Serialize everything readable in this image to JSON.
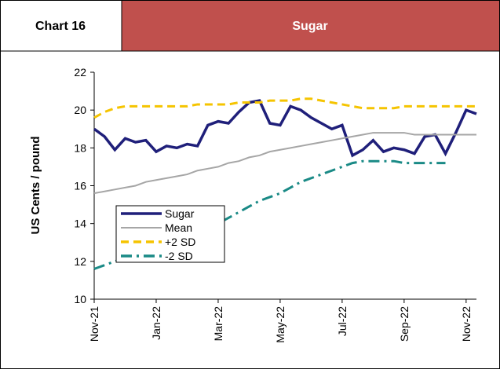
{
  "header": {
    "label": "Chart 16",
    "title": "Sugar"
  },
  "chart_data": {
    "type": "line",
    "y_axis_label": "US Cents / pound",
    "x": [
      "Nov-21",
      null,
      null,
      null,
      null,
      null,
      "Jan-22",
      null,
      null,
      null,
      null,
      null,
      "Mar-22",
      null,
      null,
      null,
      null,
      null,
      "May-22",
      null,
      null,
      null,
      null,
      null,
      "Jul-22",
      null,
      null,
      null,
      null,
      null,
      "Sep-22",
      null,
      null,
      null,
      null,
      null,
      "Nov-22",
      null
    ],
    "ylim": [
      10,
      22
    ],
    "yticks": [
      10,
      12,
      14,
      16,
      18,
      20,
      22
    ],
    "series": [
      {
        "name": "Sugar",
        "color": "#1f1f7a",
        "style": "solid",
        "values": [
          19.0,
          18.6,
          17.9,
          18.5,
          18.3,
          18.4,
          17.8,
          18.1,
          18.0,
          18.2,
          18.1,
          19.2,
          19.4,
          19.3,
          19.9,
          20.4,
          20.5,
          19.3,
          19.2,
          20.2,
          20.0,
          19.6,
          19.3,
          19.0,
          19.2,
          17.6,
          17.9,
          18.4,
          17.8,
          18.0,
          17.9,
          17.7,
          18.6,
          18.7,
          17.7,
          18.8,
          20.0,
          19.8
        ]
      },
      {
        "name": "Mean",
        "color": "#a6a6a6",
        "style": "solid",
        "values": [
          15.6,
          15.7,
          15.8,
          15.9,
          16.0,
          16.2,
          16.3,
          16.4,
          16.5,
          16.6,
          16.8,
          16.9,
          17.0,
          17.2,
          17.3,
          17.5,
          17.6,
          17.8,
          17.9,
          18.0,
          18.1,
          18.2,
          18.3,
          18.4,
          18.5,
          18.6,
          18.7,
          18.8,
          18.8,
          18.8,
          18.8,
          18.7,
          18.7,
          18.7,
          18.7,
          18.7,
          18.7,
          18.7
        ]
      },
      {
        "name": "+2 SD",
        "color": "#f5c400",
        "style": "dash",
        "values": [
          19.6,
          19.9,
          20.1,
          20.2,
          20.2,
          20.2,
          20.2,
          20.2,
          20.2,
          20.2,
          20.3,
          20.3,
          20.3,
          20.3,
          20.4,
          20.4,
          20.4,
          20.5,
          20.5,
          20.5,
          20.6,
          20.6,
          20.5,
          20.4,
          20.3,
          20.2,
          20.1,
          20.1,
          20.1,
          20.1,
          20.2,
          20.2,
          20.2,
          20.2,
          20.2,
          20.2,
          20.2,
          20.2
        ]
      },
      {
        "name": "-2 SD",
        "color": "#1a8a86",
        "style": "dashdot",
        "values": [
          11.6,
          11.8,
          12.0,
          12.2,
          12.4,
          12.6,
          12.8,
          13.0,
          13.2,
          13.4,
          13.6,
          13.8,
          14.0,
          14.3,
          14.6,
          14.9,
          15.2,
          15.4,
          15.6,
          15.9,
          16.2,
          16.4,
          16.6,
          16.8,
          17.0,
          17.2,
          17.3,
          17.3,
          17.3,
          17.3,
          17.2,
          17.2,
          17.2,
          17.2,
          17.2,
          null,
          17.1,
          null
        ]
      }
    ]
  }
}
